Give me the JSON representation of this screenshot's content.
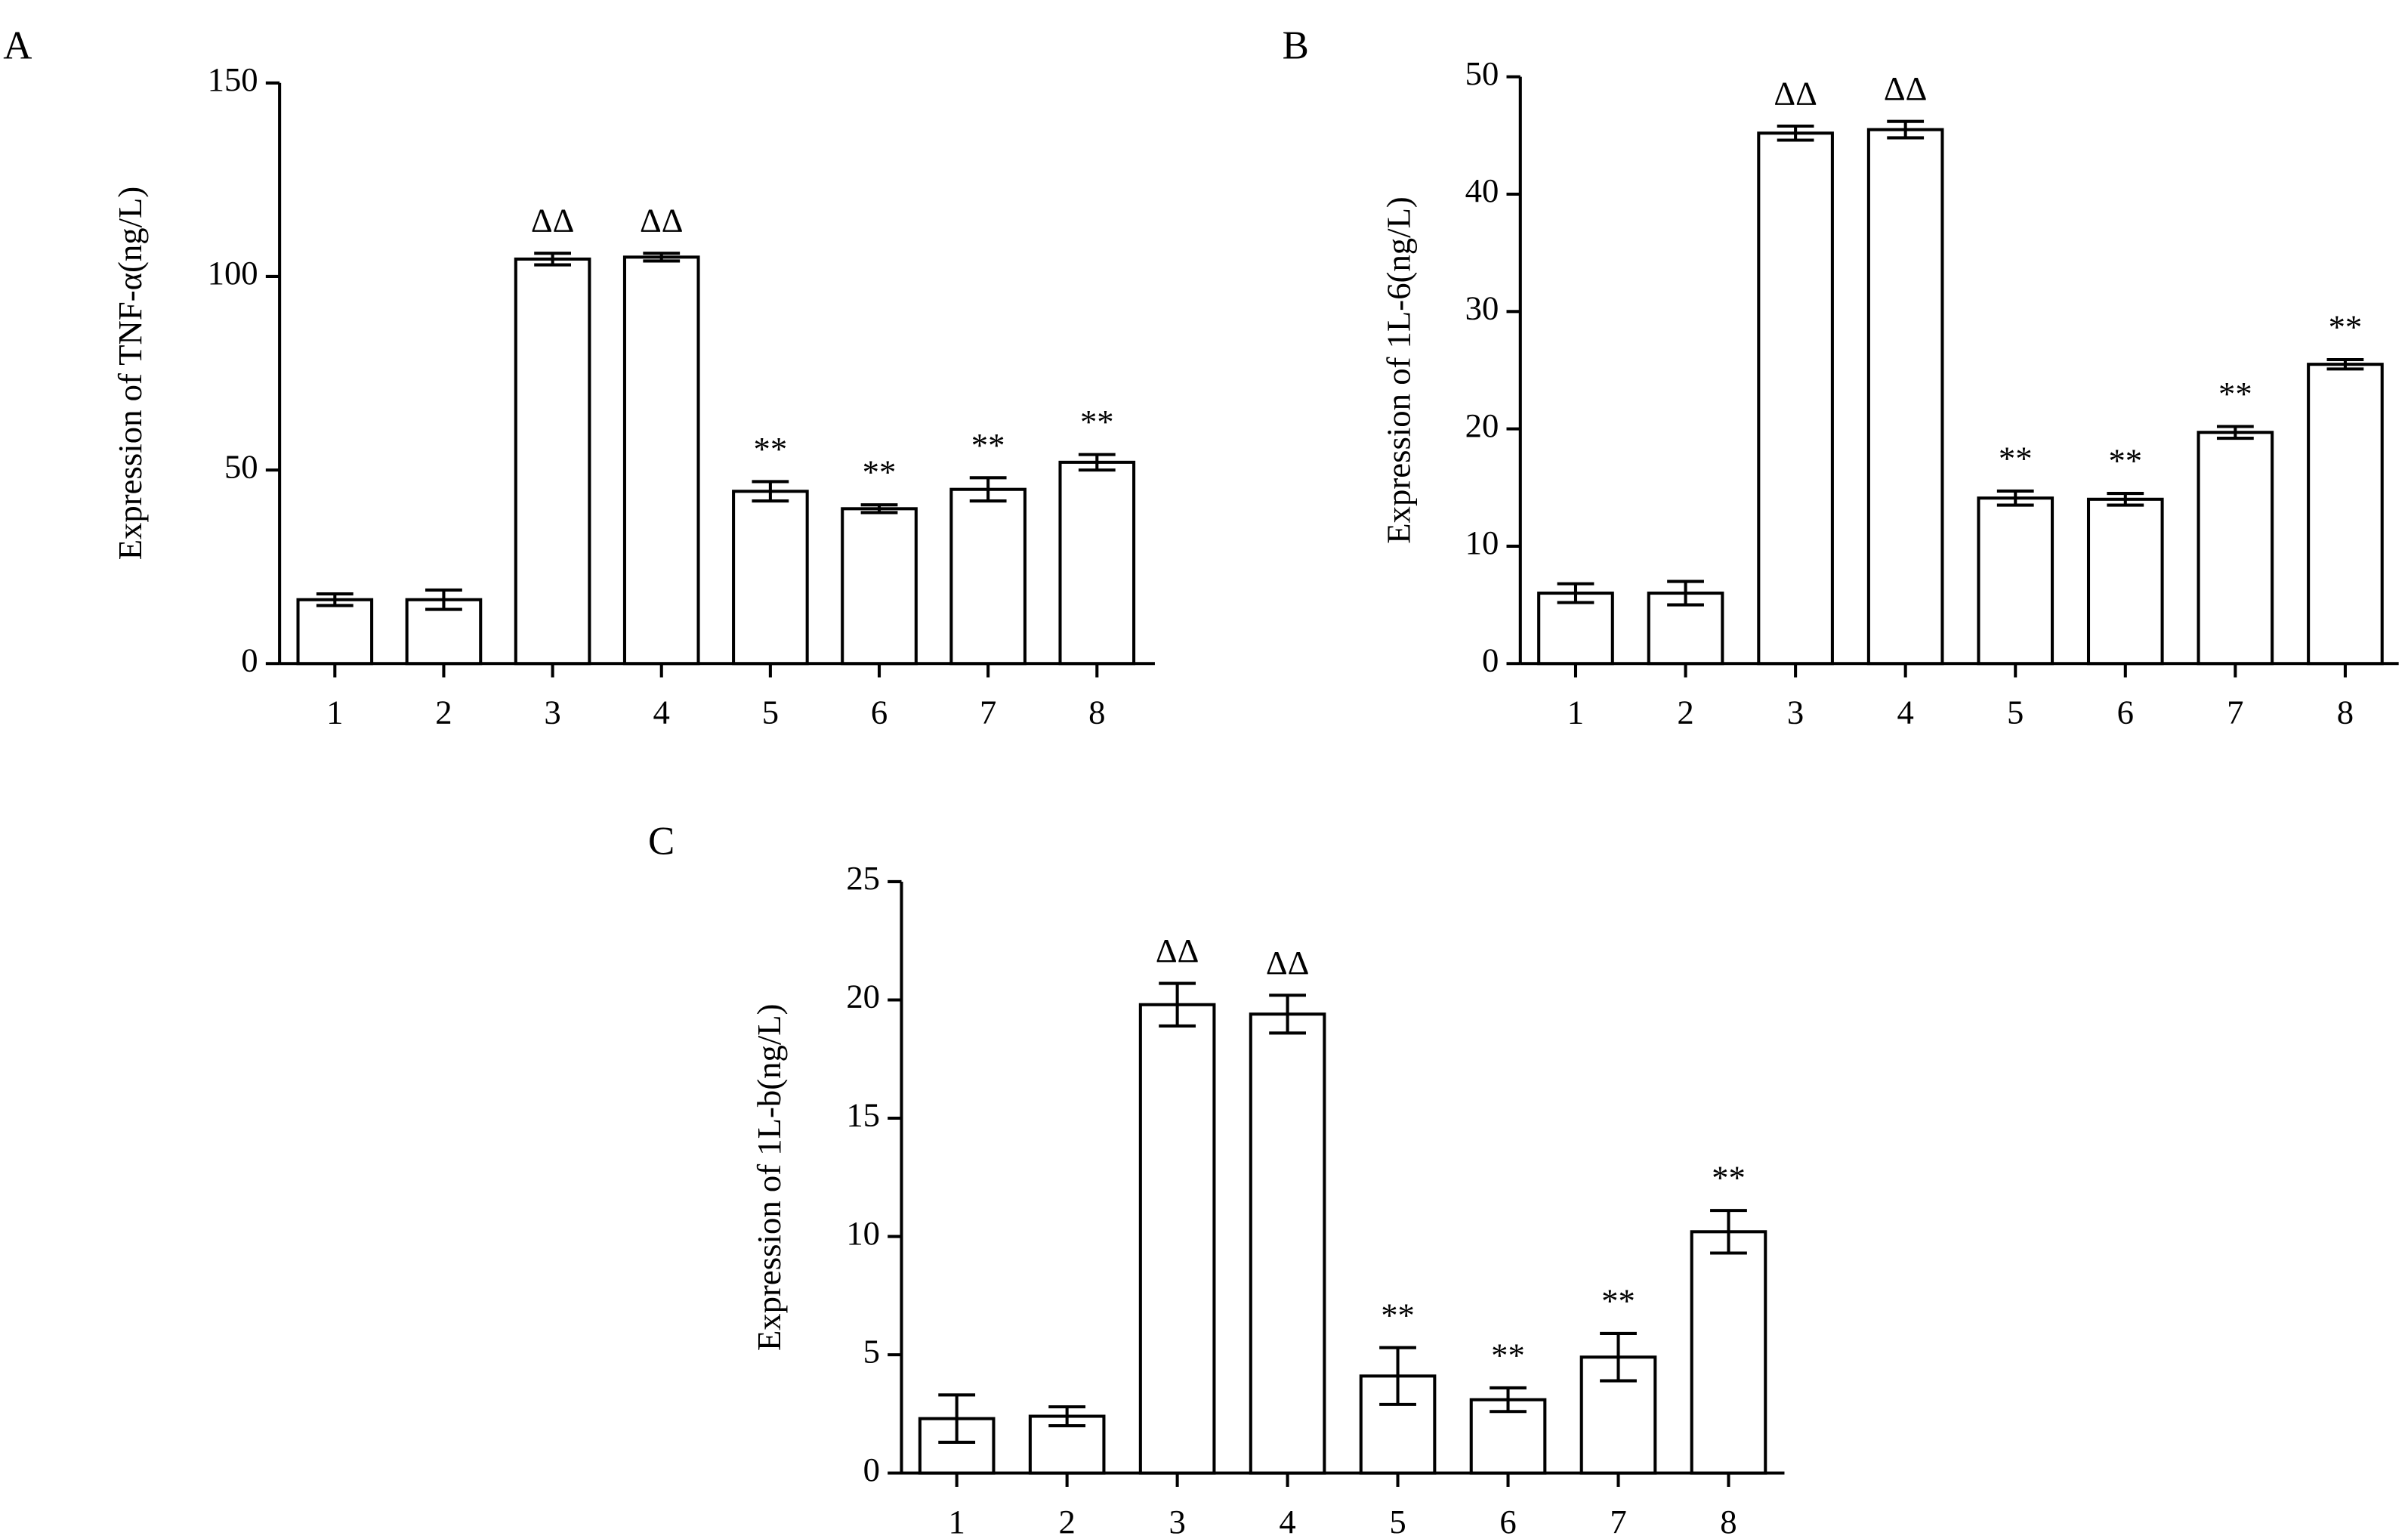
{
  "chart_data": [
    {
      "type": "bar",
      "panel": "A",
      "y_label": "Expression of TNF-α(ng/L)",
      "categories": [
        "1",
        "2",
        "3",
        "4",
        "5",
        "6",
        "7",
        "8"
      ],
      "values": [
        16.5,
        16.5,
        104.5,
        105,
        44.5,
        40,
        45,
        52
      ],
      "errors": [
        1.5,
        2.5,
        1.5,
        1,
        2.5,
        1,
        3,
        2
      ],
      "annotations": [
        null,
        null,
        "ΔΔ",
        "ΔΔ",
        "**",
        "**",
        "**",
        "**"
      ],
      "color": "#ffffff",
      "ylim": [
        0,
        150
      ],
      "yticks": [
        0,
        50,
        100,
        150
      ],
      "grid": false
    },
    {
      "type": "bar",
      "panel": "B",
      "y_label": "Expression of 1L-6(ng/L)",
      "categories": [
        "1",
        "2",
        "3",
        "4",
        "5",
        "6",
        "7",
        "8"
      ],
      "values": [
        6,
        6,
        45.2,
        45.5,
        14.1,
        14,
        19.7,
        25.5
      ],
      "errors": [
        0.8,
        1,
        0.6,
        0.7,
        0.6,
        0.5,
        0.5,
        0.4
      ],
      "annotations": [
        null,
        null,
        "ΔΔ",
        "ΔΔ",
        "**",
        "**",
        "**",
        "**"
      ],
      "color": "#ffffff",
      "ylim": [
        0,
        50
      ],
      "yticks": [
        0,
        10,
        20,
        30,
        40,
        50
      ],
      "grid": false
    },
    {
      "type": "bar",
      "panel": "C",
      "y_label": "Expression of 1L-b(ng/L)",
      "categories": [
        "1",
        "2",
        "3",
        "4",
        "5",
        "6",
        "7",
        "8"
      ],
      "values": [
        2.3,
        2.4,
        19.8,
        19.4,
        4.1,
        3.1,
        4.9,
        10.2
      ],
      "errors": [
        1,
        0.4,
        0.9,
        0.8,
        1.2,
        0.5,
        1,
        0.9
      ],
      "annotations": [
        null,
        null,
        "ΔΔ",
        "ΔΔ",
        "**",
        "**",
        "**",
        "**"
      ],
      "color": "#ffffff",
      "ylim": [
        0,
        25
      ],
      "yticks": [
        0,
        5,
        10,
        15,
        20,
        25
      ],
      "grid": false
    }
  ]
}
